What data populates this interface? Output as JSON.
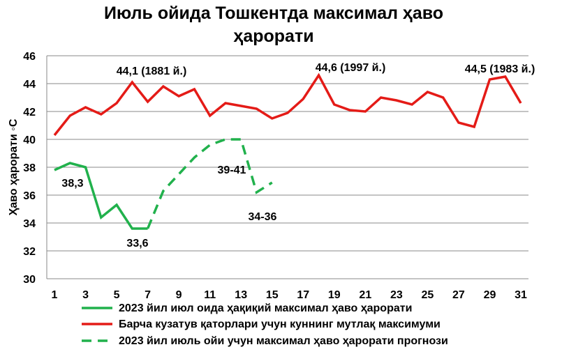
{
  "chart_data": {
    "type": "line",
    "title_lines": [
      "Июль ойида Тошкентда максимал ҳаво",
      "ҳарорати"
    ],
    "ylabel": "Ҳаво ҳарорати ◦С",
    "xlabel": "",
    "xlim": [
      1,
      31
    ],
    "ylim": [
      30,
      46
    ],
    "x_ticks": [
      1,
      3,
      5,
      7,
      9,
      11,
      13,
      15,
      17,
      19,
      21,
      23,
      25,
      27,
      29,
      31
    ],
    "y_ticks": [
      30,
      32,
      34,
      36,
      38,
      40,
      42,
      44,
      46
    ],
    "grid": "horizontal",
    "legend_position": "bottom",
    "series": [
      {
        "name": "2023 йил июл оида ҳақиқий максимал ҳаво ҳарорати",
        "color": "#21b14c",
        "style": "solid",
        "x": [
          1,
          2,
          3,
          4,
          5,
          6,
          7
        ],
        "y": [
          37.8,
          38.3,
          38.0,
          34.4,
          35.3,
          33.6,
          33.6
        ]
      },
      {
        "name": "Барча кузатув қаторлари учун куннинг мутлақ максимуми",
        "color": "#e41b17",
        "style": "solid",
        "x": [
          1,
          2,
          3,
          4,
          5,
          6,
          7,
          8,
          9,
          10,
          11,
          12,
          13,
          14,
          15,
          16,
          17,
          18,
          19,
          20,
          21,
          22,
          23,
          24,
          25,
          26,
          27,
          28,
          29,
          30,
          31
        ],
        "y": [
          40.3,
          41.7,
          42.3,
          41.8,
          42.6,
          44.1,
          42.7,
          43.8,
          43.1,
          43.6,
          41.7,
          42.6,
          42.4,
          42.2,
          41.5,
          41.9,
          42.9,
          44.6,
          42.5,
          42.1,
          42.0,
          43.0,
          42.8,
          42.5,
          43.4,
          43.0,
          41.2,
          40.9,
          44.3,
          44.5,
          42.6
        ]
      },
      {
        "name": "2023 йил июль ойи учун максимал ҳаво ҳарорати прогнози",
        "color": "#21b14c",
        "style": "dashed",
        "x": [
          7,
          8,
          9,
          10,
          11,
          12,
          13,
          14,
          15
        ],
        "y": [
          33.6,
          36.3,
          37.5,
          38.7,
          39.6,
          40.0,
          40.0,
          36.2,
          36.9
        ]
      }
    ],
    "annotations": [
      {
        "text": "44,1 (1881 й.)",
        "x": 6,
        "y": 44.1
      },
      {
        "text": "44,6 (1997 й.)",
        "x": 18,
        "y": 44.6
      },
      {
        "text": "44,5 (1983 й.)",
        "x": 30,
        "y": 44.5
      },
      {
        "text": "38,3",
        "x": 2,
        "y": 38.3
      },
      {
        "text": "33,6",
        "x": 6,
        "y": 33.6
      },
      {
        "text": "39-41",
        "x": 13,
        "y": 40.0
      },
      {
        "text": "34-36",
        "x": 14,
        "y": 36.2
      }
    ]
  }
}
